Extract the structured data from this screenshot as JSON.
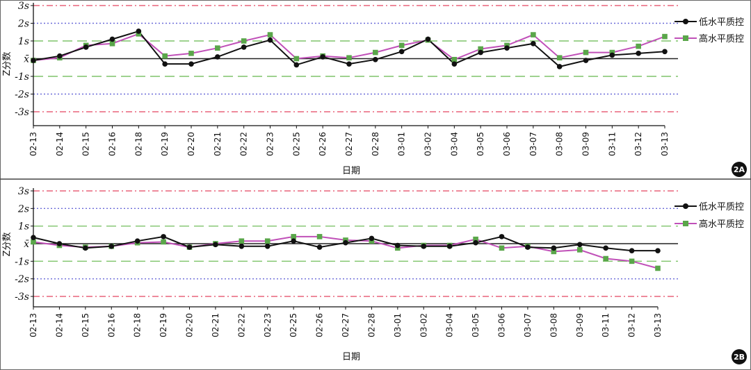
{
  "chart_data": [
    {
      "type": "line",
      "panel_label": "2A",
      "xlabel": "日期",
      "ylabel": "Z分数",
      "categories": [
        "02-13",
        "02-14",
        "02-15",
        "02-16",
        "02-18",
        "02-19",
        "02-20",
        "02-21",
        "02-22",
        "02-23",
        "02-25",
        "02-26",
        "02-27",
        "02-28",
        "03-01",
        "03-02",
        "03-04",
        "03-05",
        "03-06",
        "03-07",
        "03-08",
        "03-09",
        "03-11",
        "03-12",
        "03-13"
      ],
      "y_tick_labels": [
        "3s",
        "2s",
        "1s",
        "x̄",
        "-1s",
        "-2s",
        "-3s"
      ],
      "y_tick_values": [
        3,
        2,
        1,
        0,
        -1,
        -2,
        -3
      ],
      "ylim": [
        -3,
        3
      ],
      "reference_lines": [
        {
          "value": 3,
          "style": "dash-dot",
          "color": "#e8647a"
        },
        {
          "value": 2,
          "style": "dotted",
          "color": "#6a6ad8"
        },
        {
          "value": 1,
          "style": "dashed",
          "color": "#7ec46a"
        },
        {
          "value": 0,
          "style": "solid",
          "color": "#222222"
        },
        {
          "value": -1,
          "style": "dashed",
          "color": "#7ec46a"
        },
        {
          "value": -2,
          "style": "dotted",
          "color": "#6a6ad8"
        },
        {
          "value": -3,
          "style": "dash-dot",
          "color": "#e8647a"
        }
      ],
      "legend_position": "top-right",
      "series": [
        {
          "name": "低水平质控",
          "color": "#111111",
          "marker": "circle",
          "values": [
            -0.1,
            0.15,
            0.65,
            1.1,
            1.55,
            -0.3,
            -0.3,
            0.1,
            0.65,
            1.05,
            -0.35,
            0.1,
            -0.3,
            -0.05,
            0.4,
            1.1,
            -0.3,
            0.35,
            0.6,
            0.85,
            -0.45,
            -0.1,
            0.2,
            0.3,
            0.4
          ]
        },
        {
          "name": "高水平质控",
          "color": "#c050b8",
          "marker": "square",
          "values": [
            -0.1,
            0.05,
            0.75,
            0.85,
            1.4,
            0.15,
            0.3,
            0.6,
            1.0,
            1.35,
            0.0,
            0.15,
            0.05,
            0.35,
            0.75,
            1.05,
            -0.05,
            0.55,
            0.75,
            1.35,
            0.05,
            0.35,
            0.35,
            0.7,
            1.25
          ]
        }
      ]
    },
    {
      "type": "line",
      "panel_label": "2B",
      "xlabel": "日期",
      "ylabel": "Z分数",
      "categories": [
        "02-13",
        "02-14",
        "02-15",
        "02-16",
        "02-18",
        "02-19",
        "02-20",
        "02-21",
        "02-22",
        "02-23",
        "02-25",
        "02-26",
        "02-27",
        "02-28",
        "03-01",
        "03-02",
        "03-04",
        "03-05",
        "03-06",
        "03-07",
        "03-08",
        "03-09",
        "03-11",
        "03-12",
        "03-13"
      ],
      "y_tick_labels": [
        "3s",
        "2s",
        "1s",
        "x̄",
        "-1s",
        "-2s",
        "-3s"
      ],
      "y_tick_values": [
        3,
        2,
        1,
        0,
        -1,
        -2,
        -3
      ],
      "ylim": [
        -3,
        3
      ],
      "reference_lines": [
        {
          "value": 3,
          "style": "dash-dot",
          "color": "#e8647a"
        },
        {
          "value": 2,
          "style": "dotted",
          "color": "#6a6ad8"
        },
        {
          "value": 1,
          "style": "dashed",
          "color": "#7ec46a"
        },
        {
          "value": 0,
          "style": "solid",
          "color": "#222222"
        },
        {
          "value": -1,
          "style": "dashed",
          "color": "#7ec46a"
        },
        {
          "value": -2,
          "style": "dotted",
          "color": "#6a6ad8"
        },
        {
          "value": -3,
          "style": "dash-dot",
          "color": "#e8647a"
        }
      ],
      "legend_position": "top-right",
      "series": [
        {
          "name": "低水平质控",
          "color": "#111111",
          "marker": "circle",
          "values": [
            0.35,
            0.0,
            -0.25,
            -0.15,
            0.15,
            0.4,
            -0.2,
            -0.05,
            -0.15,
            -0.15,
            0.15,
            -0.2,
            0.05,
            0.3,
            -0.1,
            -0.15,
            -0.15,
            0.05,
            0.4,
            -0.2,
            -0.25,
            -0.05,
            -0.25,
            -0.4,
            -0.4
          ]
        },
        {
          "name": "高水平质控",
          "color": "#c050b8",
          "marker": "square",
          "values": [
            0.1,
            -0.1,
            -0.2,
            -0.15,
            0.05,
            0.1,
            -0.2,
            0.0,
            0.15,
            0.15,
            0.4,
            0.4,
            0.2,
            0.15,
            -0.25,
            -0.1,
            -0.1,
            0.25,
            -0.25,
            -0.15,
            -0.45,
            -0.35,
            -0.85,
            -1.0,
            -1.4
          ]
        }
      ]
    }
  ]
}
